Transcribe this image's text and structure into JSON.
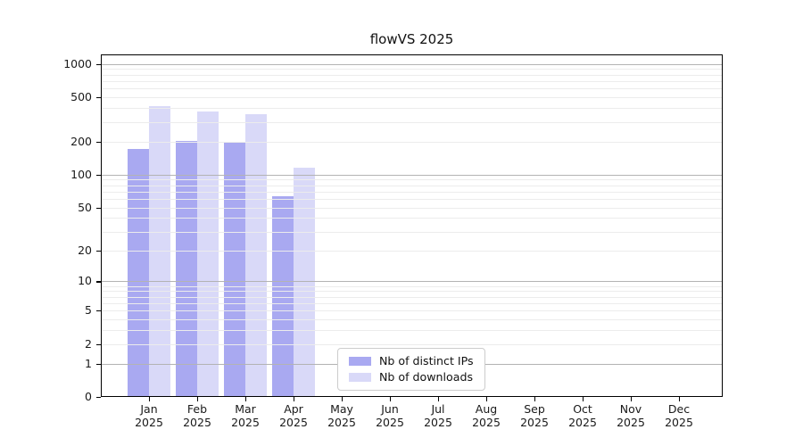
{
  "title": "flowVS 2025",
  "chart_data": {
    "type": "bar",
    "title": "flowVS 2025",
    "x_categories": [
      "Jan 2025",
      "Feb 2025",
      "Mar 2025",
      "Apr 2025",
      "May 2025",
      "Jun 2025",
      "Jul 2025",
      "Aug 2025",
      "Sep 2025",
      "Oct 2025",
      "Nov 2025",
      "Dec 2025"
    ],
    "x_tick_month_labels": [
      "Jan",
      "Feb",
      "Mar",
      "Apr",
      "May",
      "Jun",
      "Jul",
      "Aug",
      "Sep",
      "Oct",
      "Nov",
      "Dec"
    ],
    "x_tick_year_label": "2025",
    "series": [
      {
        "key": "distinct-ips",
        "name": "Nb of distinct IPs",
        "color": "#a9a9f1",
        "values": [
          170,
          203,
          200,
          63,
          0,
          0,
          0,
          0,
          0,
          0,
          0,
          0
        ]
      },
      {
        "key": "downloads",
        "name": "Nb of downloads",
        "color": "#d9d9f8",
        "values": [
          420,
          370,
          350,
          115,
          0,
          0,
          0,
          0,
          0,
          0,
          0,
          0
        ]
      }
    ],
    "y_scale": "log1p",
    "ylim": [
      0,
      1220
    ],
    "y_ticks": [
      0,
      1,
      2,
      5,
      10,
      20,
      50,
      100,
      200,
      500,
      1000
    ],
    "y_major_gridlines": [
      1,
      10,
      100,
      1000
    ],
    "y_minor_gridlines": [
      2,
      3,
      4,
      5,
      6,
      7,
      8,
      9,
      20,
      30,
      40,
      50,
      60,
      70,
      80,
      90,
      200,
      300,
      400,
      500,
      600,
      700,
      800,
      900
    ],
    "grid": true,
    "legend_position": "lower center",
    "colors": {
      "grid_major": "#b3b3b3",
      "grid_minor": "#ececec",
      "spine": "#000000",
      "text": "#1a1a1a",
      "legend_border": "#cccccc",
      "background": "#ffffff"
    }
  }
}
